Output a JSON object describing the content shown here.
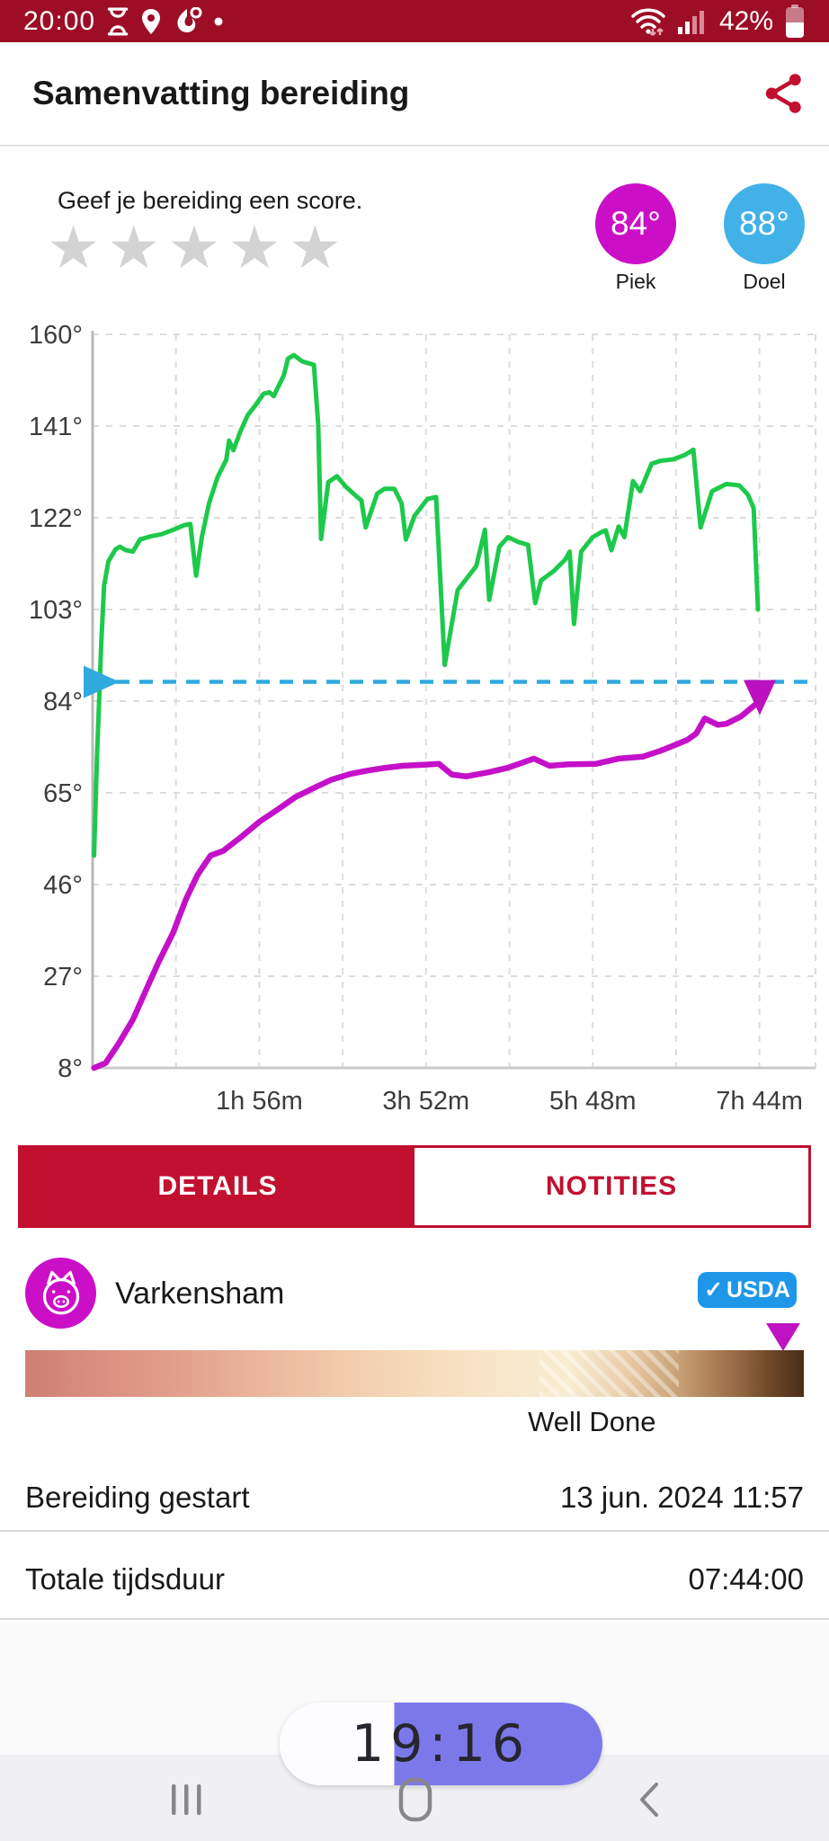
{
  "status_bar": {
    "time": "20:00",
    "battery_pct": "42%"
  },
  "header": {
    "title": "Samenvatting bereiding"
  },
  "score": {
    "prompt": "Geef je bereiding een score.",
    "stars": 5,
    "peak": {
      "value": "84°",
      "label": "Piek",
      "color": "#cb0fc7"
    },
    "target": {
      "value": "88°",
      "label": "Doel",
      "color": "#41b1e8"
    }
  },
  "chart_data": {
    "type": "line",
    "title": "",
    "xlabel": "",
    "ylabel": "",
    "ylim": [
      8,
      160
    ],
    "xlim_min": [
      0,
      503
    ],
    "grid": true,
    "legend": "none",
    "y_tick_values": [
      160,
      141,
      122,
      103,
      84,
      65,
      46,
      27,
      8
    ],
    "x_gridlines_min": [
      58,
      116,
      174,
      232,
      290,
      348,
      406,
      464
    ],
    "x_ticks": [
      {
        "min": 116,
        "label": "1h 56m"
      },
      {
        "min": 232,
        "label": "3h 52m"
      },
      {
        "min": 348,
        "label": "5h 48m"
      },
      {
        "min": 464,
        "label": "7h 44m"
      }
    ],
    "target_temp": 88,
    "target_color": "#2fa9df",
    "series": [
      {
        "name": "ambient-temp",
        "color": "#1dc94b",
        "width": 5,
        "points": [
          [
            1,
            52
          ],
          [
            3,
            72
          ],
          [
            6,
            96
          ],
          [
            8,
            108
          ],
          [
            11,
            113
          ],
          [
            16,
            115.5
          ],
          [
            19,
            116
          ],
          [
            23,
            115.3
          ],
          [
            28,
            115
          ],
          [
            33,
            117.5
          ],
          [
            41,
            118.2
          ],
          [
            48,
            118.6
          ],
          [
            56,
            119.5
          ],
          [
            64,
            120.5
          ],
          [
            68,
            120.7
          ],
          [
            72,
            110
          ],
          [
            76,
            118
          ],
          [
            81,
            125
          ],
          [
            87,
            130.5
          ],
          [
            93,
            134
          ],
          [
            95,
            138
          ],
          [
            98,
            136
          ],
          [
            103,
            140
          ],
          [
            108,
            143.3
          ],
          [
            113,
            145.2
          ],
          [
            119,
            147.7
          ],
          [
            123,
            148
          ],
          [
            126,
            147.2
          ],
          [
            133,
            151.5
          ],
          [
            136,
            155
          ],
          [
            140,
            155.7
          ],
          [
            146,
            154.4
          ],
          [
            154,
            153.7
          ],
          [
            157,
            141.4
          ],
          [
            159,
            117.6
          ],
          [
            164,
            129.4
          ],
          [
            170,
            130.6
          ],
          [
            176,
            128.5
          ],
          [
            183,
            126.6
          ],
          [
            187,
            125.6
          ],
          [
            190,
            120
          ],
          [
            198,
            127
          ],
          [
            203,
            128
          ],
          [
            210,
            128
          ],
          [
            215,
            125
          ],
          [
            218,
            117.5
          ],
          [
            224,
            122.4
          ],
          [
            233,
            125.9
          ],
          [
            239,
            126.3
          ],
          [
            245,
            91.5
          ],
          [
            254,
            107
          ],
          [
            267,
            112
          ],
          [
            273,
            119.5
          ],
          [
            276,
            105
          ],
          [
            283,
            116
          ],
          [
            289,
            118
          ],
          [
            296,
            117
          ],
          [
            303,
            116.4
          ],
          [
            308,
            104.3
          ],
          [
            312,
            109
          ],
          [
            321,
            111
          ],
          [
            329,
            113.4
          ],
          [
            332,
            115
          ],
          [
            335,
            100
          ],
          [
            340,
            115
          ],
          [
            348,
            118
          ],
          [
            354,
            119
          ],
          [
            357,
            119.4
          ],
          [
            361,
            115.3
          ],
          [
            366,
            120.2
          ],
          [
            370,
            118
          ],
          [
            376,
            129.6
          ],
          [
            381,
            127.5
          ],
          [
            389,
            133.2
          ],
          [
            395,
            133.8
          ],
          [
            404,
            134.1
          ],
          [
            412,
            135
          ],
          [
            418,
            136.1
          ],
          [
            423,
            120
          ],
          [
            431,
            127.5
          ],
          [
            441,
            129
          ],
          [
            450,
            128.7
          ],
          [
            456,
            126.8
          ],
          [
            460,
            124
          ],
          [
            463,
            103
          ]
        ]
      },
      {
        "name": "internal-temp",
        "color": "#c411c9",
        "width": 6.5,
        "points": [
          [
            1,
            8
          ],
          [
            9,
            9
          ],
          [
            18,
            13
          ],
          [
            28,
            18
          ],
          [
            37,
            24
          ],
          [
            46,
            30
          ],
          [
            56,
            36
          ],
          [
            65,
            43
          ],
          [
            73,
            48
          ],
          [
            82,
            52
          ],
          [
            91,
            53
          ],
          [
            104,
            56
          ],
          [
            116,
            59
          ],
          [
            129,
            61.6
          ],
          [
            141,
            64.1
          ],
          [
            154,
            66
          ],
          [
            166,
            67.7
          ],
          [
            179,
            68.9
          ],
          [
            191,
            69.6
          ],
          [
            204,
            70.2
          ],
          [
            216,
            70.6
          ],
          [
            229,
            70.8
          ],
          [
            241,
            71
          ],
          [
            250,
            68.8
          ],
          [
            260,
            68.4
          ],
          [
            276,
            69.3
          ],
          [
            289,
            70.2
          ],
          [
            307,
            72.1
          ],
          [
            318,
            70.6
          ],
          [
            331,
            70.9
          ],
          [
            350,
            71
          ],
          [
            366,
            72.1
          ],
          [
            383,
            72.5
          ],
          [
            395,
            73.7
          ],
          [
            406,
            75
          ],
          [
            414,
            76
          ],
          [
            420,
            77.3
          ],
          [
            426,
            80.4
          ],
          [
            435,
            79.1
          ],
          [
            441,
            79.3
          ],
          [
            451,
            80.8
          ],
          [
            464,
            84
          ]
        ]
      }
    ]
  },
  "tabs": {
    "details": "DETAILS",
    "notities": "NOTITIES"
  },
  "details": {
    "meat_name": "Varkensham",
    "badge": "USDA",
    "doneness_label": "Well Done",
    "rows": [
      {
        "label": "Bereiding gestart",
        "value": "13 jun. 2024 11:57"
      },
      {
        "label": "Totale tijdsduur",
        "value": "07:44:00"
      }
    ]
  },
  "overlay": {
    "timer": "19:16"
  },
  "colors": {
    "accent_red": "#c11030",
    "statusbar_red": "#9d0d25",
    "pill_purple": "#7b79e9"
  }
}
